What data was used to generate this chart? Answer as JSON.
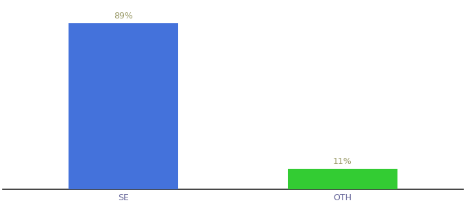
{
  "categories": [
    "SE",
    "OTH"
  ],
  "values": [
    89,
    11
  ],
  "bar_colors": [
    "#4472db",
    "#33cc33"
  ],
  "label_texts": [
    "89%",
    "11%"
  ],
  "background_color": "#ffffff",
  "ylim": [
    0,
    100
  ],
  "bar_width": 0.5,
  "label_fontsize": 9,
  "tick_fontsize": 9,
  "label_color": "#999966",
  "tick_color": "#666699",
  "spine_color": "#222222"
}
